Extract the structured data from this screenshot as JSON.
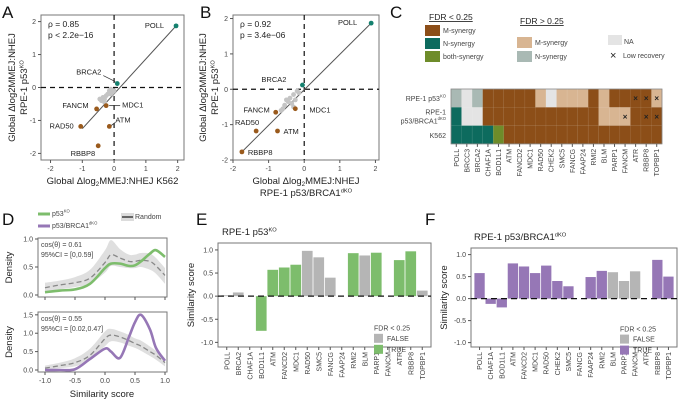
{
  "panels": {
    "A": "A",
    "B": "B",
    "C": "C",
    "D": "D",
    "E": "E",
    "F": "F"
  },
  "colors": {
    "m_synergy": "#8c4e18",
    "n_synergy": "#0d6b5e",
    "both_synergy": "#6e8c2a",
    "m_synergy_ns": "#d8b592",
    "n_synergy_ns": "#a9b9b4",
    "na": "#e4e4e4",
    "scatter_m": "#9a5a1c",
    "scatter_n": "#14806e",
    "scatter_other": "#c4c4c4",
    "green": "#7dbd6c",
    "purple": "#9677b6",
    "grey": "#b5b5b5",
    "band": "#dcdcdc"
  },
  "chart_data": [
    {
      "type": "scatter",
      "panel": "A",
      "stat1": "ρ = 0.85",
      "stat2": "p < 2.2e−16",
      "xlabel": {
        "main": "Global Δlog",
        "sub": "2",
        "rest": "MMEJ:NHEJ K562"
      },
      "ylabel1": {
        "main": "Global Δlog2MMEJ:NHEJ"
      },
      "ylabel2": {
        "main": "RPE-1 p53",
        "sup": "KO"
      },
      "xlim": [
        -2.3,
        2.2
      ],
      "ylim": [
        -2.2,
        2.2
      ],
      "xticks": [
        "-2",
        "-1",
        "0",
        "1",
        "2"
      ],
      "yticks": [
        "-2",
        "-1",
        "0",
        "1",
        "2"
      ],
      "fit": [
        [
          -1.0,
          -1.25
        ],
        [
          1.95,
          1.87
        ]
      ],
      "points": [
        {
          "gene": "POLL",
          "x": 1.95,
          "y": 1.87,
          "class": "N"
        },
        {
          "gene": "BRCA2",
          "x": 0.1,
          "y": 0.12,
          "class": "N"
        },
        {
          "gene": "FANCM",
          "x": -0.55,
          "y": -0.65,
          "class": "M"
        },
        {
          "gene": "MDC1",
          "x": -0.25,
          "y": -0.55,
          "class": "M"
        },
        {
          "gene": "RAD50",
          "x": -1.05,
          "y": -1.18,
          "class": "M"
        },
        {
          "gene": "ATM",
          "x": -0.15,
          "y": -1.18,
          "class": "M"
        },
        {
          "gene": "RBBP8",
          "x": -0.5,
          "y": -1.77,
          "class": "M"
        }
      ],
      "other_points": [
        [
          -0.3,
          -0.35
        ],
        [
          -0.35,
          -0.3
        ],
        [
          -0.4,
          -0.4
        ],
        [
          -0.3,
          -0.45
        ],
        [
          -0.2,
          -0.2
        ],
        [
          -0.15,
          -0.1
        ],
        [
          -0.1,
          -0.05
        ],
        [
          -0.05,
          -0.15
        ],
        [
          -0.25,
          -0.25
        ],
        [
          -0.45,
          -0.35
        ],
        [
          -0.1,
          -0.2
        ],
        [
          0.0,
          -0.1
        ]
      ]
    },
    {
      "type": "scatter",
      "panel": "B",
      "stat1": "ρ = 0.92",
      "stat2": "p = 3.4e−06",
      "xlabel": {
        "main": "Global Δlog",
        "sub": "2",
        "rest": "MMEJ:NHEJ"
      },
      "xlabel2": {
        "main": "RPE-1 p53/BRCA1",
        "sup": "dKO"
      },
      "ylabel1": {
        "main": "Global Δlog2MMEJ:NHEJ"
      },
      "ylabel2": {
        "main": "RPE-1 p53",
        "sup": "KO"
      },
      "xlim": [
        -2,
        2.1
      ],
      "ylim": [
        -2,
        2.1
      ],
      "xticks": [
        "-2",
        "-1",
        "0",
        "1",
        "2"
      ],
      "yticks": [
        "-2",
        "-1",
        "0",
        "1",
        "2"
      ],
      "fit": [
        [
          -1.75,
          -1.77
        ],
        [
          1.88,
          1.87
        ]
      ],
      "points": [
        {
          "gene": "POLL",
          "x": 1.88,
          "y": 1.87,
          "class": "N"
        },
        {
          "gene": "BRCA2",
          "x": -0.05,
          "y": 0.12,
          "class": "N"
        },
        {
          "gene": "FANCM",
          "x": -0.8,
          "y": -0.65,
          "class": "M"
        },
        {
          "gene": "MDC1",
          "x": -0.25,
          "y": -0.55,
          "class": "M"
        },
        {
          "gene": "RAD50",
          "x": -1.35,
          "y": -1.18,
          "class": "M"
        },
        {
          "gene": "ATM",
          "x": -0.75,
          "y": -1.18,
          "class": "M"
        },
        {
          "gene": "RBBP8",
          "x": -1.75,
          "y": -1.77,
          "class": "M"
        }
      ],
      "other_points": [
        [
          -0.5,
          -0.3
        ],
        [
          -0.4,
          -0.25
        ],
        [
          -0.3,
          -0.15
        ],
        [
          -0.2,
          -0.05
        ],
        [
          -0.55,
          -0.45
        ],
        [
          -0.35,
          -0.4
        ],
        [
          -0.65,
          -0.6
        ],
        [
          -0.25,
          -0.3
        ],
        [
          -0.15,
          -0.1
        ],
        [
          -0.45,
          -0.35
        ],
        [
          -0.3,
          -0.5
        ],
        [
          -0.6,
          -0.55
        ]
      ]
    },
    {
      "type": "heatmap",
      "panel": "C",
      "legend_sig_title": "FDR < 0.25",
      "legend_ns_title": "FDR > 0.25",
      "legend_sig": [
        {
          "code": "M",
          "label": "M-synergy"
        },
        {
          "code": "N",
          "label": "N-synergy"
        },
        {
          "code": "B",
          "label": "both-synergy"
        }
      ],
      "legend_ns": [
        {
          "code": "Mns",
          "label": "M-synergy"
        },
        {
          "code": "Nns",
          "label": "N-synergy"
        }
      ],
      "legend_na": "NA",
      "legend_low": "Low recovery",
      "low_symbol": "×",
      "columns": [
        "POLL",
        "BRCC3",
        "BRCA2",
        "CHAF1A",
        "BOD1L1",
        "ATM",
        "FANCD2",
        "MDC1",
        "RAD50",
        "CHEK2",
        "SMC5",
        "FANCG",
        "FAAP24",
        "RMI2",
        "BLM",
        "PARP1",
        "FANCM",
        "ATR",
        "RBBP8",
        "TOPBP1"
      ],
      "rows": [
        {
          "label": {
            "main": "RPE-1 p53",
            "sup": "KO"
          },
          "label2": null,
          "cells": [
            "Nns",
            "NA",
            "Nns",
            "M",
            "M",
            "M",
            "M",
            "M",
            "Mns",
            "NA",
            "Mns",
            "Mns",
            "Mns",
            "M",
            "Mns",
            "M",
            "M",
            "M",
            "M",
            "Mns"
          ],
          "low_recovery": [
            "ATR",
            "RBBP8",
            "TOPBP1"
          ]
        },
        {
          "label": {
            "main": "RPE-1"
          },
          "label2": {
            "main": "p53/BRCA1",
            "sup": "dKO"
          },
          "cells": [
            "N",
            "NA",
            "NA",
            "M",
            "M",
            "M",
            "M",
            "M",
            "M",
            "M",
            "M",
            "M",
            "M",
            "M",
            "Mns",
            "Mns",
            "Mns",
            "M",
            "M",
            "M"
          ],
          "low_recovery": [
            "FANCM",
            "RBBP8",
            "TOPBP1"
          ]
        },
        {
          "label": {
            "main": "K562"
          },
          "label2": null,
          "cells": [
            "N",
            "N",
            "N",
            "N",
            "B",
            "M",
            "M",
            "M",
            "M",
            "M",
            "M",
            "M",
            "M",
            "M",
            "M",
            "M",
            "M",
            "M",
            "M",
            "M"
          ],
          "low_recovery": []
        }
      ]
    },
    {
      "type": "line",
      "panel": "D",
      "legend": [
        {
          "name": {
            "main": "p53",
            "sup": "KO"
          },
          "color": "green"
        },
        {
          "name": {
            "main": "p53/BRCA1",
            "sup": "dKO"
          },
          "color": "purple"
        },
        {
          "name": {
            "main": "Random"
          },
          "color": "grey"
        }
      ],
      "xlabel": "Similarity score",
      "ylabel": "Density",
      "x": [
        -1,
        -0.75,
        -0.5,
        -0.25,
        0,
        0.1,
        0.25,
        0.4,
        0.5,
        0.6,
        0.75,
        0.85,
        1
      ],
      "xticks": [
        "-1.0",
        "-0.5",
        "0.0",
        "0.5",
        "1.0"
      ],
      "subplots": [
        {
          "cos": "cos(θ) = 0.61",
          "ci": "95%CI = [0,0.59]",
          "ylim": [
            0,
            1.0
          ],
          "yticks": [
            "0.0",
            "0.5",
            "1.0"
          ],
          "color": "green",
          "observed": [
            0.05,
            0.08,
            0.1,
            0.2,
            0.48,
            0.56,
            0.56,
            0.52,
            0.53,
            0.6,
            0.74,
            0.8,
            0.68
          ],
          "random_mean": [
            0.13,
            0.18,
            0.22,
            0.3,
            0.58,
            0.72,
            0.66,
            0.6,
            0.6,
            0.62,
            0.6,
            0.52,
            0.35
          ],
          "random_lower": [
            0.06,
            0.1,
            0.14,
            0.2,
            0.4,
            0.52,
            0.5,
            0.48,
            0.48,
            0.5,
            0.45,
            0.38,
            0.2
          ],
          "random_upper": [
            0.22,
            0.26,
            0.32,
            0.45,
            0.8,
            0.98,
            0.82,
            0.72,
            0.72,
            0.75,
            0.74,
            0.66,
            0.48
          ]
        },
        {
          "cos": "cos(θ) = 0.55",
          "ci": "95%CI = [0.02,0.47]",
          "ylim": [
            0,
            1.55
          ],
          "yticks": [
            "0.0",
            "0.5",
            "1.0",
            "1.5"
          ],
          "color": "purple",
          "observed": [
            0.0,
            0.0,
            0.02,
            0.3,
            0.58,
            0.5,
            0.33,
            0.9,
            1.3,
            1.5,
            1.1,
            0.6,
            0.25
          ],
          "random_mean": [
            0.05,
            0.12,
            0.2,
            0.4,
            0.85,
            0.95,
            0.9,
            0.8,
            0.72,
            0.65,
            0.5,
            0.4,
            0.2
          ],
          "random_lower": [
            0.0,
            0.05,
            0.1,
            0.25,
            0.65,
            0.78,
            0.75,
            0.66,
            0.6,
            0.52,
            0.38,
            0.28,
            0.1
          ],
          "random_upper": [
            0.12,
            0.2,
            0.32,
            0.58,
            1.05,
            1.12,
            1.05,
            0.95,
            0.86,
            0.8,
            0.64,
            0.52,
            0.32
          ]
        }
      ]
    },
    {
      "type": "bar",
      "panel": "E",
      "title": {
        "main": "RPE-1 p53",
        "sup": "KO"
      },
      "ylabel": "Similarity score",
      "ylim": [
        -1.1,
        1.15
      ],
      "yticks": [
        "-1.0",
        "-0.5",
        "0.0",
        "0.5",
        "1.0"
      ],
      "legend_title": "FDR < 0.25",
      "legend": [
        "FALSE",
        "TRUE"
      ],
      "true_color": "green",
      "categories": [
        "POLL",
        "BRCA2",
        "CHAF1A",
        "BOD1L1",
        "ATM",
        "FANCD2",
        "MDC1",
        "RAD50",
        "SMC5",
        "FANCG",
        "FAAP24",
        "RMI2",
        "BLM",
        "PARP1",
        "FANCM",
        "ATR",
        "RBBP8",
        "TOPBP1"
      ],
      "values": [
        0.02,
        0.08,
        null,
        -0.75,
        0.57,
        0.62,
        0.68,
        0.98,
        0.84,
        0.4,
        null,
        0.93,
        0.88,
        0.94,
        null,
        0.78,
        0.97,
        0.12
      ],
      "significant": [
        false,
        false,
        null,
        true,
        true,
        true,
        true,
        false,
        false,
        false,
        null,
        true,
        false,
        true,
        null,
        true,
        true,
        false
      ]
    },
    {
      "type": "bar",
      "panel": "F",
      "title": {
        "main": "RPE-1 p53/BRCA1",
        "sup": "dKO"
      },
      "ylabel": "Similarity score",
      "ylim": [
        -1.1,
        1.15
      ],
      "yticks": [
        "-1.0",
        "-0.5",
        "0.0",
        "0.5",
        "1.0"
      ],
      "legend_title": "FDR < 0.25",
      "legend": [
        "FALSE",
        "TRUE"
      ],
      "true_color": "purple",
      "categories": [
        "POLL",
        "CHAF1A",
        "BOD1L1",
        "ATM",
        "FANCD2",
        "MDC1",
        "RAD50",
        "CHEK2",
        "SMC5",
        "FANCG",
        "FAAP24",
        "RMI2",
        "BLM",
        "PARP1",
        "FANCM",
        "ATR",
        "RBBP8",
        "TOPBP1"
      ],
      "values": [
        0.58,
        -0.12,
        -0.2,
        0.8,
        0.73,
        0.58,
        0.75,
        0.4,
        0.28,
        null,
        0.49,
        0.63,
        0.6,
        0.4,
        0.62,
        null,
        0.88,
        0.5
      ],
      "significant": [
        true,
        true,
        true,
        true,
        true,
        true,
        true,
        true,
        true,
        null,
        true,
        true,
        false,
        false,
        false,
        null,
        true,
        true
      ]
    }
  ]
}
